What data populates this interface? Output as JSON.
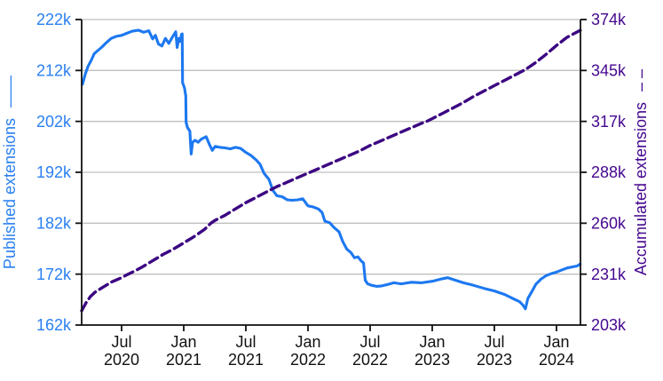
{
  "chart_data": {
    "type": "line",
    "title": "",
    "grid": "horizontal-gray-lines",
    "legend_position": "axis-labels-act-as-legend",
    "colors": {
      "published_line": "#1d78f0",
      "published_labels": "#2a80f2",
      "accumulated_line": "#3c0782",
      "accumulated_labels": "#45078f",
      "gridline": "#bfbfbf",
      "axis_spine": "#111111",
      "x_tick_labels": "#111111",
      "background": "#ffffff"
    },
    "x_axis": {
      "range_start": "2020-03-04",
      "range_end": "2024-03-10",
      "ticks": [
        {
          "date": "2020-07-01",
          "month": "Jul",
          "year": "2020"
        },
        {
          "date": "2021-01-01",
          "month": "Jan",
          "year": "2021"
        },
        {
          "date": "2021-07-01",
          "month": "Jul",
          "year": "2021"
        },
        {
          "date": "2022-01-01",
          "month": "Jan",
          "year": "2022"
        },
        {
          "date": "2022-07-01",
          "month": "Jul",
          "year": "2022"
        },
        {
          "date": "2023-01-01",
          "month": "Jan",
          "year": "2023"
        },
        {
          "date": "2023-07-01",
          "month": "Jul",
          "year": "2023"
        },
        {
          "date": "2024-01-01",
          "month": "Jan",
          "year": "2024"
        }
      ]
    },
    "left_axis": {
      "label": "Published extensions",
      "legend_marker": "——",
      "line_style": "solid",
      "unit": "k (thousands of extensions)",
      "min": 162,
      "max": 222,
      "ticks": [
        {
          "value": 222,
          "label": "222k"
        },
        {
          "value": 212,
          "label": "212k"
        },
        {
          "value": 202,
          "label": "202k"
        },
        {
          "value": 192,
          "label": "192k"
        },
        {
          "value": 182,
          "label": "182k"
        },
        {
          "value": 172,
          "label": "172k"
        },
        {
          "value": 162,
          "label": "162k"
        }
      ]
    },
    "right_axis": {
      "label": "Accumulated extensions",
      "legend_marker": "– –",
      "line_style": "dashed",
      "unit": "k (thousands of extensions)",
      "min": 203,
      "max": 374,
      "ticks": [
        {
          "value": 374,
          "label": "374k"
        },
        {
          "value": 345.5,
          "label": "345k"
        },
        {
          "value": 317,
          "label": "317k"
        },
        {
          "value": 288.5,
          "label": "288k"
        },
        {
          "value": 260,
          "label": "260k"
        },
        {
          "value": 231.5,
          "label": "231k"
        },
        {
          "value": 203,
          "label": "203k"
        }
      ]
    },
    "series": [
      {
        "name": "Published extensions",
        "axis": "left",
        "line_style": "solid",
        "color": "#1d78f0",
        "points": [
          [
            "2020-03-08",
            209.3
          ],
          [
            "2020-03-16",
            211.3
          ],
          [
            "2020-03-24",
            212.8
          ],
          [
            "2020-04-03",
            214.0
          ],
          [
            "2020-04-12",
            215.3
          ],
          [
            "2020-04-22",
            215.9
          ],
          [
            "2020-05-04",
            216.6
          ],
          [
            "2020-05-16",
            217.4
          ],
          [
            "2020-06-01",
            218.3
          ],
          [
            "2020-06-16",
            218.7
          ],
          [
            "2020-07-01",
            218.9
          ],
          [
            "2020-07-16",
            219.3
          ],
          [
            "2020-08-01",
            219.7
          ],
          [
            "2020-08-20",
            219.9
          ],
          [
            "2020-09-05",
            219.5
          ],
          [
            "2020-09-20",
            219.8
          ],
          [
            "2020-10-01",
            218.2
          ],
          [
            "2020-10-09",
            218.9
          ],
          [
            "2020-10-18",
            217.2
          ],
          [
            "2020-10-28",
            216.8
          ],
          [
            "2020-11-08",
            218.3
          ],
          [
            "2020-11-18",
            217.3
          ],
          [
            "2020-11-28",
            218.5
          ],
          [
            "2020-12-08",
            219.6
          ],
          [
            "2020-12-12",
            216.5
          ],
          [
            "2020-12-17",
            218.3
          ],
          [
            "2020-12-21",
            217.7
          ],
          [
            "2020-12-25",
            219.1
          ],
          [
            "2020-12-27",
            219.2
          ],
          [
            "2020-12-28",
            209.6
          ],
          [
            "2021-01-03",
            208.6
          ],
          [
            "2021-01-07",
            207.0
          ],
          [
            "2021-01-08",
            201.8
          ],
          [
            "2021-01-12",
            200.8
          ],
          [
            "2021-01-19",
            200.1
          ],
          [
            "2021-01-23",
            195.6
          ],
          [
            "2021-01-27",
            197.9
          ],
          [
            "2021-02-04",
            198.3
          ],
          [
            "2021-02-13",
            197.9
          ],
          [
            "2021-02-22",
            198.5
          ],
          [
            "2021-03-06",
            199.0
          ],
          [
            "2021-03-16",
            197.4
          ],
          [
            "2021-03-24",
            196.3
          ],
          [
            "2021-04-02",
            197.1
          ],
          [
            "2021-04-16",
            196.9
          ],
          [
            "2021-05-01",
            196.8
          ],
          [
            "2021-05-16",
            196.6
          ],
          [
            "2021-06-01",
            196.9
          ],
          [
            "2021-06-16",
            196.7
          ],
          [
            "2021-07-01",
            195.9
          ],
          [
            "2021-07-16",
            195.3
          ],
          [
            "2021-08-01",
            194.4
          ],
          [
            "2021-08-12",
            193.6
          ],
          [
            "2021-08-24",
            191.8
          ],
          [
            "2021-09-08",
            190.6
          ],
          [
            "2021-09-20",
            188.4
          ],
          [
            "2021-10-01",
            187.4
          ],
          [
            "2021-10-16",
            187.2
          ],
          [
            "2021-11-01",
            186.6
          ],
          [
            "2021-11-16",
            186.5
          ],
          [
            "2021-12-01",
            186.6
          ],
          [
            "2021-12-16",
            186.8
          ],
          [
            "2022-01-01",
            185.4
          ],
          [
            "2022-01-16",
            185.2
          ],
          [
            "2022-02-01",
            184.8
          ],
          [
            "2022-02-12",
            184.1
          ],
          [
            "2022-02-20",
            182.4
          ],
          [
            "2022-03-04",
            182.1
          ],
          [
            "2022-03-16",
            181.2
          ],
          [
            "2022-04-01",
            180.3
          ],
          [
            "2022-04-12",
            178.4
          ],
          [
            "2022-04-24",
            176.9
          ],
          [
            "2022-05-06",
            176.2
          ],
          [
            "2022-05-16",
            175.2
          ],
          [
            "2022-05-26",
            175.4
          ],
          [
            "2022-06-05",
            174.6
          ],
          [
            "2022-06-12",
            174.2
          ],
          [
            "2022-06-17",
            170.8
          ],
          [
            "2022-06-24",
            170.1
          ],
          [
            "2022-07-06",
            169.8
          ],
          [
            "2022-07-20",
            169.6
          ],
          [
            "2022-08-05",
            169.7
          ],
          [
            "2022-08-24",
            170.0
          ],
          [
            "2022-09-10",
            170.3
          ],
          [
            "2022-10-01",
            170.1
          ],
          [
            "2022-11-01",
            170.4
          ],
          [
            "2022-12-01",
            170.3
          ],
          [
            "2023-01-01",
            170.6
          ],
          [
            "2023-02-01",
            171.1
          ],
          [
            "2023-02-16",
            171.3
          ],
          [
            "2023-03-04",
            170.9
          ],
          [
            "2023-04-01",
            170.3
          ],
          [
            "2023-05-01",
            169.8
          ],
          [
            "2023-06-01",
            169.2
          ],
          [
            "2023-07-01",
            168.7
          ],
          [
            "2023-08-01",
            168.0
          ],
          [
            "2023-09-01",
            167.0
          ],
          [
            "2023-09-14",
            166.6
          ],
          [
            "2023-09-24",
            165.9
          ],
          [
            "2023-10-01",
            165.2
          ],
          [
            "2023-10-08",
            167.2
          ],
          [
            "2023-10-20",
            168.6
          ],
          [
            "2023-11-01",
            170.0
          ],
          [
            "2023-11-16",
            171.0
          ],
          [
            "2023-12-01",
            171.7
          ],
          [
            "2023-12-16",
            172.1
          ],
          [
            "2024-01-01",
            172.4
          ],
          [
            "2024-01-16",
            172.8
          ],
          [
            "2024-02-01",
            173.2
          ],
          [
            "2024-02-16",
            173.4
          ],
          [
            "2024-03-01",
            173.6
          ],
          [
            "2024-03-10",
            174.0
          ]
        ]
      },
      {
        "name": "Accumulated extensions",
        "axis": "right",
        "line_style": "dashed",
        "color": "#3c0782",
        "points": [
          [
            "2020-03-04",
            211.0
          ],
          [
            "2020-03-20",
            216.0
          ],
          [
            "2020-04-01",
            219.0
          ],
          [
            "2020-04-15",
            221.5
          ],
          [
            "2020-05-01",
            223.5
          ],
          [
            "2020-06-01",
            227.0
          ],
          [
            "2020-07-01",
            229.5
          ],
          [
            "2020-07-15",
            231.0
          ],
          [
            "2020-08-01",
            232.5
          ],
          [
            "2020-09-01",
            235.5
          ],
          [
            "2020-10-01",
            239.0
          ],
          [
            "2020-11-01",
            242.5
          ],
          [
            "2020-12-01",
            245.5
          ],
          [
            "2021-01-01",
            249.0
          ],
          [
            "2021-02-01",
            252.5
          ],
          [
            "2021-03-01",
            256.5
          ],
          [
            "2021-03-20",
            260.0
          ],
          [
            "2021-04-01",
            261.5
          ],
          [
            "2021-05-01",
            264.5
          ],
          [
            "2021-06-01",
            268.0
          ],
          [
            "2021-07-01",
            271.5
          ],
          [
            "2021-08-01",
            274.5
          ],
          [
            "2021-09-01",
            277.5
          ],
          [
            "2021-10-01",
            280.5
          ],
          [
            "2021-11-01",
            283.0
          ],
          [
            "2021-12-01",
            285.5
          ],
          [
            "2022-01-01",
            288.0
          ],
          [
            "2022-02-01",
            290.5
          ],
          [
            "2022-03-01",
            293.0
          ],
          [
            "2022-04-01",
            295.5
          ],
          [
            "2022-05-01",
            298.0
          ],
          [
            "2022-06-01",
            300.5
          ],
          [
            "2022-07-01",
            303.5
          ],
          [
            "2022-08-01",
            306.0
          ],
          [
            "2022-09-01",
            308.5
          ],
          [
            "2022-10-01",
            311.0
          ],
          [
            "2022-11-01",
            313.5
          ],
          [
            "2022-12-01",
            316.0
          ],
          [
            "2022-12-15",
            317.0
          ],
          [
            "2023-01-01",
            318.5
          ],
          [
            "2023-02-01",
            321.5
          ],
          [
            "2023-03-01",
            324.5
          ],
          [
            "2023-04-01",
            327.5
          ],
          [
            "2023-05-01",
            331.0
          ],
          [
            "2023-06-01",
            334.0
          ],
          [
            "2023-07-01",
            337.0
          ],
          [
            "2023-08-01",
            340.0
          ],
          [
            "2023-09-01",
            343.0
          ],
          [
            "2023-10-01",
            346.0
          ],
          [
            "2023-11-01",
            350.0
          ],
          [
            "2023-12-01",
            354.5
          ],
          [
            "2024-01-01",
            359.5
          ],
          [
            "2024-02-01",
            364.0
          ],
          [
            "2024-03-10",
            368.0
          ]
        ]
      }
    ]
  }
}
